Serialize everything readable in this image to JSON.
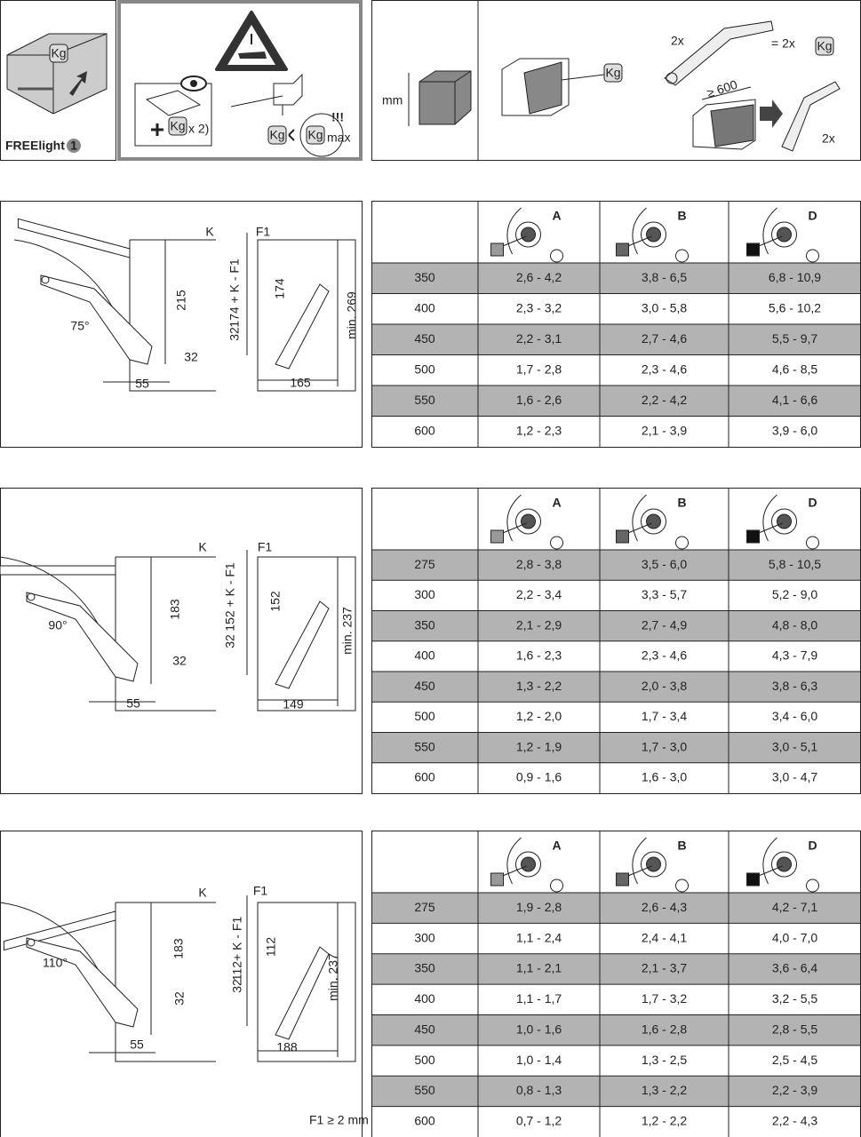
{
  "header": {
    "product": "FREElight",
    "badge": "1",
    "kg": "Kg",
    "times_two": "x 2)",
    "alert": "!!!",
    "max": "max",
    "mm": "mm",
    "pair": "2x",
    "equals": "= 2x",
    "min_depth": "≥ 600"
  },
  "sections": [
    {
      "diagram": {
        "angle": "75°",
        "k": "K",
        "f1": "F1",
        "height": "215",
        "offset": "32",
        "depth": "55",
        "formula": "174 + K - F1",
        "arm": "174",
        "offset_right": "32",
        "min_height": "min. 269",
        "width": "165"
      },
      "table": {
        "columns": [
          "A",
          "B",
          "D"
        ],
        "rows": [
          [
            "350",
            "2,6 - 4,2",
            "3,8 - 6,5",
            "6,8 - 10,9"
          ],
          [
            "400",
            "2,3 - 3,2",
            "3,0 - 5,8",
            "5,6 - 10,2"
          ],
          [
            "450",
            "2,2 - 3,1",
            "2,7 - 4,6",
            "5,5 - 9,7"
          ],
          [
            "500",
            "1,7 - 2,8",
            "2,3 - 4,6",
            "4,6 - 8,5"
          ],
          [
            "550",
            "1,6 - 2,6",
            "2,2 - 4,2",
            "4,1 - 6,6"
          ],
          [
            "600",
            "1,2 - 2,3",
            "2,1 - 3,9",
            "3,9 - 6,0"
          ]
        ]
      }
    },
    {
      "diagram": {
        "angle": "90°",
        "k": "K",
        "f1": "F1",
        "height": "183",
        "offset": "32",
        "depth": "55",
        "formula": "152 + K - F1",
        "arm": "152",
        "offset_right": "32",
        "min_height": "min. 237",
        "width": "149"
      },
      "table": {
        "columns": [
          "A",
          "B",
          "D"
        ],
        "rows": [
          [
            "275",
            "2,8 - 3,8",
            "3,5 - 6,0",
            "5,8 - 10,5"
          ],
          [
            "300",
            "2,2 - 3,4",
            "3,3 - 5,7",
            "5,2 - 9,0"
          ],
          [
            "350",
            "2,1 - 2,9",
            "2,7 - 4,9",
            "4,8 - 8,0"
          ],
          [
            "400",
            "1,6 - 2,3",
            "2,3 - 4,6",
            "4,3 - 7,9"
          ],
          [
            "450",
            "1,3 - 2,2",
            "2,0 - 3,8",
            "3,8 - 6,3"
          ],
          [
            "500",
            "1,2 - 2,0",
            "1,7 - 3,4",
            "3,4 - 6,0"
          ],
          [
            "550",
            "1,2 - 1,9",
            "1,7 - 3,0",
            "3,0 - 5,1"
          ],
          [
            "600",
            "0,9 - 1,6",
            "1,6 - 3,0",
            "3,0 - 4,7"
          ]
        ]
      }
    },
    {
      "diagram": {
        "angle": "110°",
        "k": "K",
        "f1": "F1",
        "height": "183",
        "offset": "32",
        "depth": "55",
        "formula": "112+ K - F1",
        "arm": "112",
        "offset_right": "32",
        "min_height": "min. 237",
        "width": "188"
      },
      "table": {
        "columns": [
          "A",
          "B",
          "D"
        ],
        "rows": [
          [
            "275",
            "1,9 - 2,8",
            "2,6 - 4,3",
            "4,2 - 7,1"
          ],
          [
            "300",
            "1,1 - 2,4",
            "2,4 - 4,1",
            "4,0 - 7,0"
          ],
          [
            "350",
            "1,1 - 2,1",
            "2,1 - 3,7",
            "3,6 - 6,4"
          ],
          [
            "400",
            "1,1 - 1,7",
            "1,7 - 3,2",
            "3,2 - 5,5"
          ],
          [
            "450",
            "1,0 - 1,6",
            "1,6 - 2,8",
            "2,8 - 5,5"
          ],
          [
            "500",
            "1,0 - 1,4",
            "1,3 - 2,5",
            "2,5 - 4,5"
          ],
          [
            "550",
            "0,8 - 1,3",
            "1,3 - 2,2",
            "2,2 - 3,9"
          ],
          [
            "600",
            "0,7 - 1,2",
            "1,2 - 2,2",
            "2,2 - 4,3"
          ]
        ]
      }
    }
  ],
  "footnote": "F1 ≥ 2 mm"
}
